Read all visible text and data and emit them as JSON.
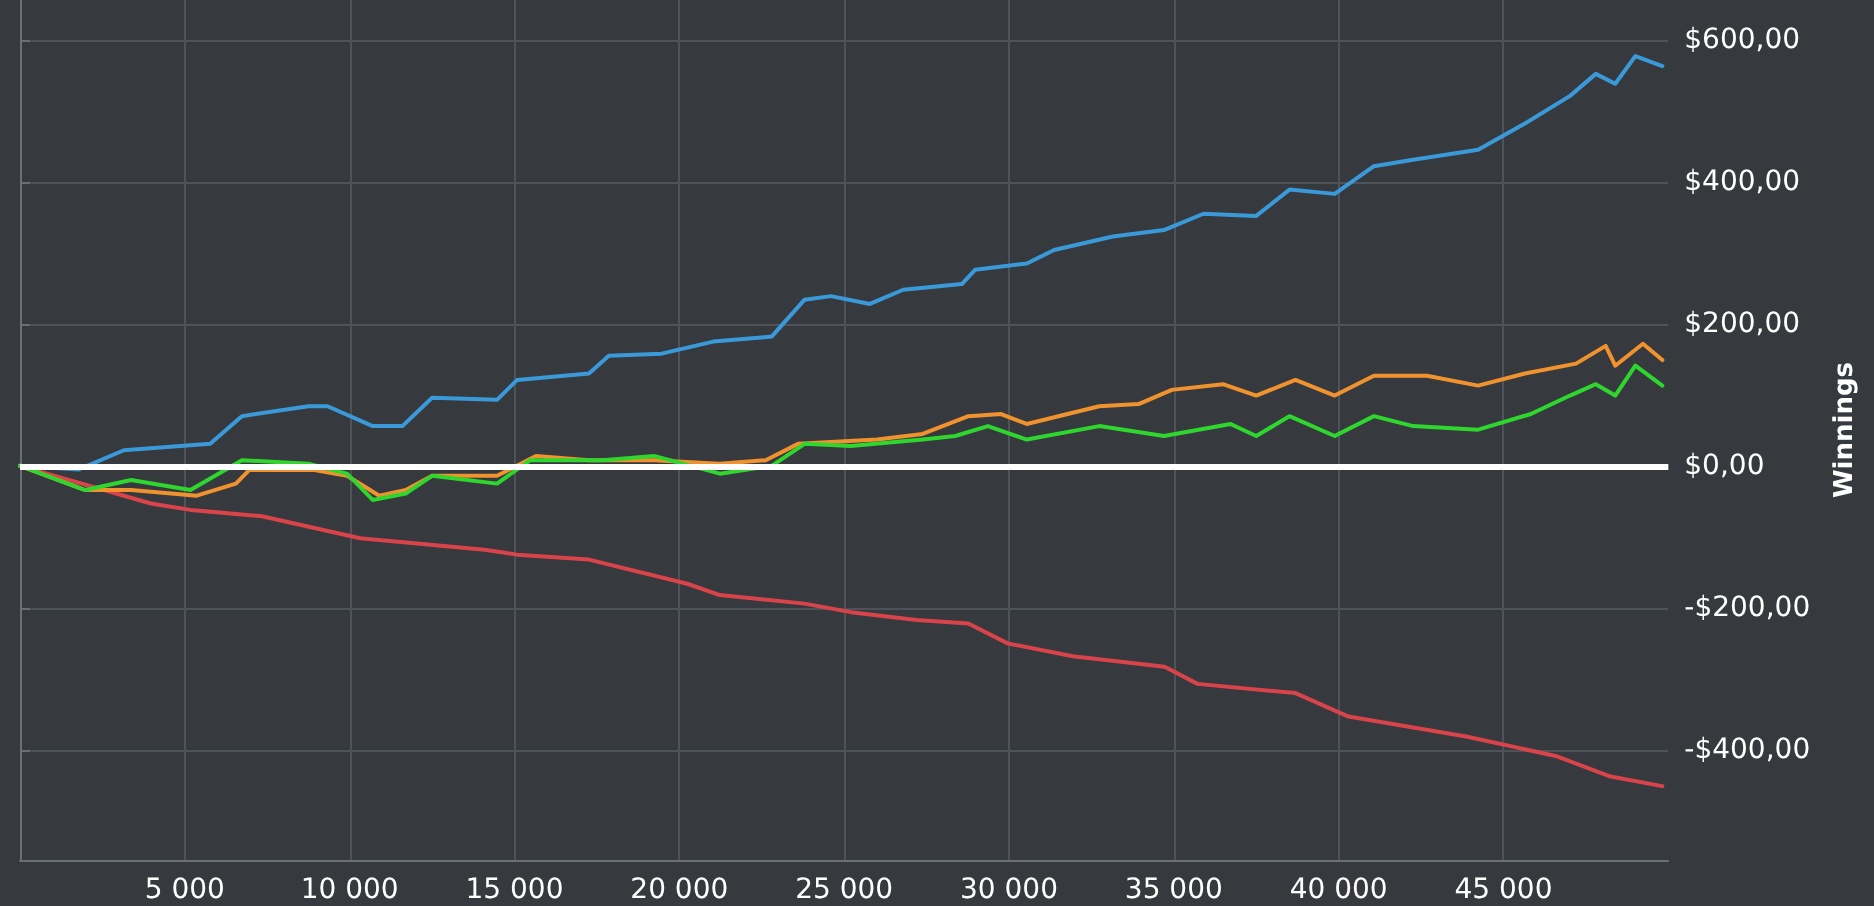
{
  "chart_data": {
    "type": "line",
    "ylabel": "Winnings",
    "xlim": [
      0,
      50000
    ],
    "ylim": [
      -555,
      656
    ],
    "xticks": [
      {
        "value": 5000,
        "label": "5 000"
      },
      {
        "value": 10000,
        "label": "10 000"
      },
      {
        "value": 15000,
        "label": "15 000"
      },
      {
        "value": 20000,
        "label": "20 000"
      },
      {
        "value": 25000,
        "label": "25 000"
      },
      {
        "value": 30000,
        "label": "30 000"
      },
      {
        "value": 35000,
        "label": "35 000"
      },
      {
        "value": 40000,
        "label": "40 000"
      },
      {
        "value": 45000,
        "label": "45 000"
      }
    ],
    "yticks": [
      {
        "value": -400,
        "label": "-$400,00"
      },
      {
        "value": -200,
        "label": "-$200,00"
      },
      {
        "value": 0,
        "label": "$0,00"
      },
      {
        "value": 200,
        "label": "$200,00"
      },
      {
        "value": 400,
        "label": "$400,00"
      },
      {
        "value": 600,
        "label": "$600,00"
      }
    ],
    "grid": true,
    "marker": "none",
    "line_style": "solid",
    "ref_lines": [
      {
        "axis": "y",
        "value": 0,
        "color": "#ffffff"
      }
    ],
    "series": [
      {
        "color": "#3a9ad9",
        "x": [
          0,
          1790,
          3150,
          5770,
          6730,
          8750,
          9330,
          10700,
          11600,
          12500,
          14470,
          15080,
          17260,
          17860,
          19460,
          21030,
          22800,
          23800,
          24600,
          25780,
          26790,
          28570,
          28970,
          30540,
          31370,
          33150,
          34700,
          35900,
          37500,
          38510,
          39880,
          41070,
          42260,
          44230,
          45650,
          47020,
          47800,
          48390,
          49000,
          49820
        ],
        "values": [
          0,
          -5,
          22,
          31,
          70,
          84,
          84,
          56,
          56,
          96,
          93,
          121,
          130,
          155,
          158,
          175,
          182,
          234,
          239,
          228,
          248,
          256,
          276,
          285,
          304,
          323,
          332,
          355,
          352,
          389,
          383,
          422,
          431,
          445,
          482,
          521,
          552,
          538,
          577,
          563
        ]
      },
      {
        "color": "#d9434a",
        "x": [
          0,
          3970,
          5170,
          7340,
          10320,
          14090,
          15080,
          17260,
          20240,
          21230,
          23800,
          25200,
          27200,
          28770,
          29960,
          31940,
          34720,
          35720,
          38690,
          40300,
          43870,
          46620,
          48210,
          49820
        ],
        "values": [
          0,
          -53,
          -62,
          -71,
          -102,
          -118,
          -125,
          -132,
          -166,
          -182,
          -194,
          -206,
          -217,
          -222,
          -250,
          -268,
          -283,
          -307,
          -320,
          -353,
          -381,
          -409,
          -437,
          -451
        ]
      },
      {
        "color": "#f0922e",
        "x": [
          0,
          1980,
          3370,
          5360,
          6550,
          6950,
          8930,
          9920,
          10900,
          11700,
          12500,
          14470,
          15650,
          17260,
          19230,
          21230,
          22620,
          23600,
          26000,
          27380,
          28770,
          29760,
          30540,
          32740,
          33930,
          34940,
          36490,
          37500,
          38690,
          39880,
          41070,
          42680,
          44230,
          45650,
          47200,
          48100,
          48390,
          49230,
          49820
        ],
        "values": [
          0,
          -34,
          -34,
          -42,
          -25,
          -6,
          -6,
          -14,
          -42,
          -34,
          -14,
          -14,
          14,
          8,
          8,
          3,
          8,
          31,
          37,
          45,
          70,
          73,
          59,
          84,
          87,
          107,
          115,
          99,
          121,
          99,
          127,
          127,
          113,
          130,
          144,
          169,
          141,
          172,
          149
        ]
      },
      {
        "color": "#2ed62e",
        "x": [
          0,
          1980,
          3370,
          5170,
          6730,
          8750,
          9920,
          10700,
          11700,
          12500,
          14470,
          15480,
          17680,
          19230,
          21230,
          22800,
          23800,
          25200,
          27380,
          28370,
          29360,
          30540,
          32740,
          34700,
          36720,
          37500,
          38510,
          39880,
          41070,
          42260,
          44230,
          45830,
          47020,
          47800,
          48390,
          49000,
          49820
        ],
        "values": [
          0,
          -34,
          -20,
          -34,
          8,
          3,
          -11,
          -48,
          -39,
          -14,
          -25,
          8,
          8,
          14,
          -11,
          0,
          31,
          28,
          37,
          42,
          56,
          37,
          56,
          42,
          59,
          42,
          70,
          42,
          70,
          56,
          51,
          73,
          99,
          115,
          99,
          141,
          113
        ]
      }
    ]
  }
}
